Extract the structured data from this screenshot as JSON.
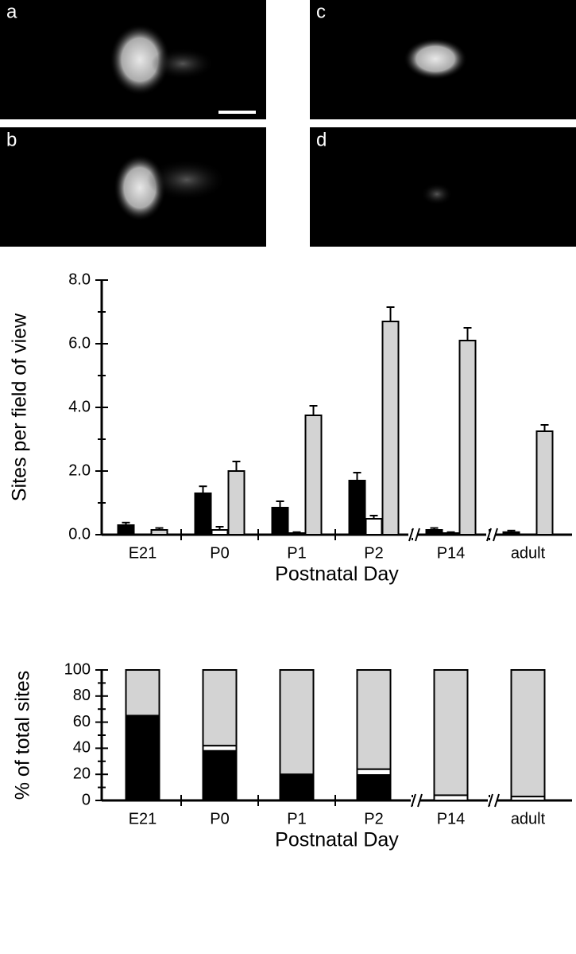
{
  "panels": [
    {
      "label": "a"
    },
    {
      "label": "b"
    },
    {
      "label": "c"
    },
    {
      "label": "d"
    }
  ],
  "chart_data": [
    {
      "type": "grouped_bar",
      "ylabel": "Sites per field of view",
      "xlabel": "Postnatal Day",
      "categories": [
        "E21",
        "P0",
        "P1",
        "P2",
        "P14",
        "adult"
      ],
      "series": [
        {
          "color": "#000000",
          "values": [
            0.3,
            1.3,
            0.85,
            1.7,
            0.15,
            0.08
          ],
          "errors": [
            0.08,
            0.22,
            0.2,
            0.25,
            0.06,
            0.05
          ]
        },
        {
          "color": "#ffffff",
          "values": [
            0,
            0.15,
            0.05,
            0.5,
            0.05,
            0
          ],
          "errors": [
            0,
            0.1,
            0.03,
            0.1,
            0.03,
            0
          ]
        },
        {
          "color": "#d3d3d3",
          "values": [
            0.15,
            2.0,
            3.75,
            6.7,
            6.1,
            3.25
          ],
          "errors": [
            0.06,
            0.3,
            0.3,
            0.45,
            0.4,
            0.2
          ]
        }
      ],
      "ylim": [
        0,
        8
      ],
      "yticks": [
        {
          "value": 0,
          "label": "0.0"
        },
        {
          "value": 2,
          "label": "2.0"
        },
        {
          "value": 4,
          "label": "4.0"
        },
        {
          "value": 6,
          "label": "6.0"
        },
        {
          "value": 8,
          "label": "8.0"
        }
      ],
      "minor_yticks": [
        1,
        3,
        5,
        7
      ]
    },
    {
      "type": "stacked_bar",
      "ylabel": "% of total sites",
      "xlabel": "Postnatal Day",
      "categories": [
        "E21",
        "P0",
        "P1",
        "P2",
        "P14",
        "adult"
      ],
      "series": [
        {
          "color": "#000000",
          "values": [
            65,
            38,
            19.5,
            19.5,
            0,
            0
          ]
        },
        {
          "color": "#ffffff",
          "values": [
            0,
            4,
            0.5,
            4.5,
            4,
            3
          ]
        },
        {
          "color": "#d3d3d3",
          "values": [
            35,
            58,
            80,
            76,
            96,
            97
          ]
        }
      ],
      "ylim": [
        0,
        100
      ],
      "yticks": [
        0,
        20,
        40,
        60,
        80,
        100
      ],
      "minor_yticks": [
        10,
        30,
        50,
        70,
        90
      ]
    }
  ]
}
